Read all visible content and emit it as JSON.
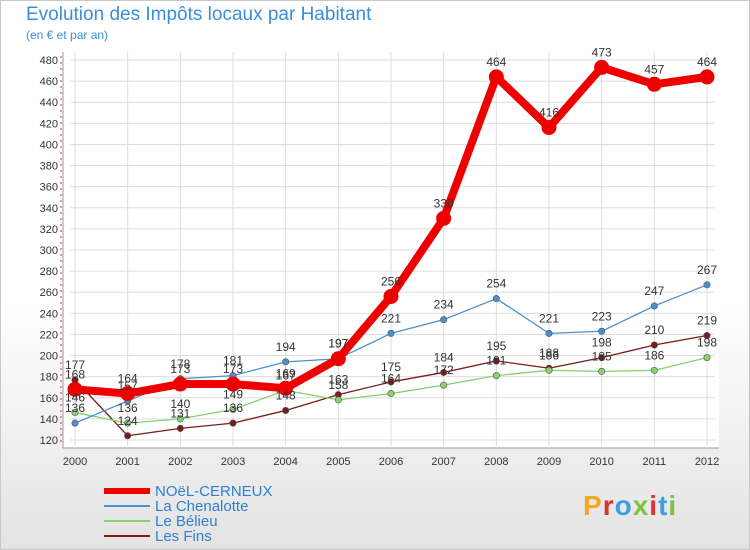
{
  "header": {
    "title": "Evolution des Impôts locaux par Habitant",
    "subtitle": "(en € et par an)"
  },
  "logo": {
    "text": "Proxiti",
    "colors": [
      "#f5a623",
      "#e03030",
      "#3aa0e0",
      "#7cc242",
      "#e03030",
      "#3aa0e0",
      "#7cc242"
    ]
  },
  "chart_data": {
    "type": "line",
    "x": [
      "2000",
      "2001",
      "2002",
      "2003",
      "2004",
      "2005",
      "2006",
      "2007",
      "2008",
      "2009",
      "2010",
      "2011",
      "2012"
    ],
    "ylim": [
      120,
      480
    ],
    "yticks": [
      120,
      140,
      160,
      180,
      200,
      220,
      240,
      260,
      280,
      300,
      320,
      340,
      360,
      380,
      400,
      420,
      440,
      460,
      480
    ],
    "grid": true,
    "legend_position": "bottom-left",
    "series": [
      {
        "name": "NOëL-CERNEUX",
        "color": "#ee0000",
        "values": [
          168,
          164,
          173,
          173,
          169,
          197,
          256,
          330,
          464,
          416,
          473,
          457,
          464
        ],
        "labels": [
          "168",
          "164",
          "173",
          "173",
          "169",
          "197",
          "256",
          "330",
          "464",
          "416",
          "473",
          "457",
          "464"
        ]
      },
      {
        "name": "La Chenalotte",
        "color": "#4a90d0",
        "values": [
          136,
          157,
          178,
          181,
          194,
          197,
          221,
          234,
          254,
          221,
          223,
          247,
          267
        ],
        "labels": [
          "136",
          "157",
          "178",
          "181",
          "194",
          "197",
          "221",
          "234",
          "254",
          "221",
          "223",
          "247",
          "267"
        ]
      },
      {
        "name": "Le Bélieu",
        "color": "#88d070",
        "values": [
          146,
          136,
          140,
          149,
          167,
          158,
          164,
          172,
          181,
          186,
          185,
          186,
          198
        ],
        "labels": [
          "146",
          "136",
          "140",
          "149",
          "167",
          "158",
          "164",
          "172",
          "181",
          "186",
          "185",
          "186",
          "198"
        ]
      },
      {
        "name": "Les Fins",
        "color": "#7a1c1c",
        "values": [
          177,
          124,
          131,
          136,
          148,
          163,
          175,
          184,
          195,
          188,
          198,
          210,
          219
        ],
        "labels": [
          "177",
          "124",
          "131",
          "136",
          "148",
          "163",
          "175",
          "184",
          "195",
          "188",
          "198",
          "210",
          "219"
        ]
      }
    ]
  }
}
